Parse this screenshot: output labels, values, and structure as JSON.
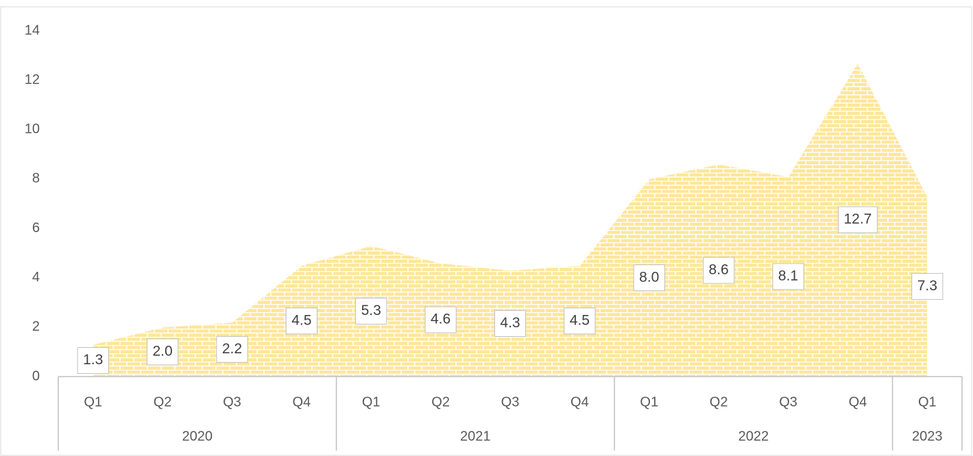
{
  "chart_data": {
    "type": "area",
    "groups": [
      {
        "label": "2020",
        "categories": [
          "Q1",
          "Q2",
          "Q3",
          "Q4"
        ]
      },
      {
        "label": "2021",
        "categories": [
          "Q1",
          "Q2",
          "Q3",
          "Q4"
        ]
      },
      {
        "label": "2022",
        "categories": [
          "Q1",
          "Q2",
          "Q3",
          "Q4"
        ]
      },
      {
        "label": "2023",
        "categories": [
          "Q1"
        ]
      }
    ],
    "values": [
      1.3,
      2.0,
      2.2,
      4.5,
      5.3,
      4.6,
      4.3,
      4.5,
      8.0,
      8.6,
      8.1,
      12.7,
      7.3
    ],
    "value_labels": [
      "1.3",
      "2.0",
      "2.2",
      "4.5",
      "5.3",
      "4.6",
      "4.3",
      "4.5",
      "8.0",
      "8.6",
      "8.1",
      "12.7",
      "7.3"
    ],
    "color": "#ffe699",
    "ylim": [
      0,
      14
    ],
    "yticks": [
      0,
      2,
      4,
      6,
      8,
      10,
      12,
      14
    ],
    "grid": false
  }
}
